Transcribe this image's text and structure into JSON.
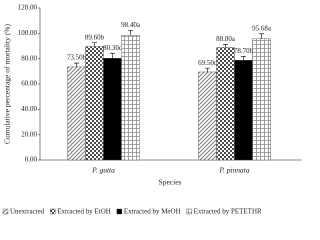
{
  "chart_data": {
    "type": "bar",
    "y_label": "Cumulative percentage of mortality (%)",
    "x_label": "Species",
    "categories": [
      "P. gutta",
      "P. pinnata"
    ],
    "series": [
      {
        "name": "Unextracted",
        "color": "#7a7a7a",
        "values": [
          73.5,
          69.5
        ],
        "value_labels": [
          "73.50b",
          "69.50c"
        ],
        "errors": [
          3,
          3
        ]
      },
      {
        "name": "Extracted by EtOH",
        "color": "#4a4a4a",
        "values": [
          89.6,
          88.8
        ],
        "value_labels": [
          "89.60b",
          "88.80a"
        ],
        "errors": [
          3,
          2.5
        ]
      },
      {
        "name": "Extracted by MeOH",
        "color": "#000000",
        "values": [
          80.3,
          78.7
        ],
        "value_labels": [
          "80.30c",
          "78.70b"
        ],
        "errors": [
          4,
          3
        ]
      },
      {
        "name": "Extracted by PETETHR",
        "color": "#8c8c8c",
        "values": [
          98.4,
          95.68
        ],
        "value_labels": [
          "98.40a",
          "95.68a"
        ],
        "errors": [
          4,
          4
        ]
      }
    ],
    "ylim": [
      0,
      120
    ],
    "yticks": [
      {
        "value": 0,
        "label": "0.00"
      },
      {
        "value": 20,
        "label": "20.00"
      },
      {
        "value": 40,
        "label": "40.00"
      },
      {
        "value": 60,
        "label": "60.00"
      },
      {
        "value": 80,
        "label": "80.00"
      },
      {
        "value": 100,
        "label": "100.00"
      },
      {
        "value": 120,
        "label": "120.00"
      }
    ]
  }
}
